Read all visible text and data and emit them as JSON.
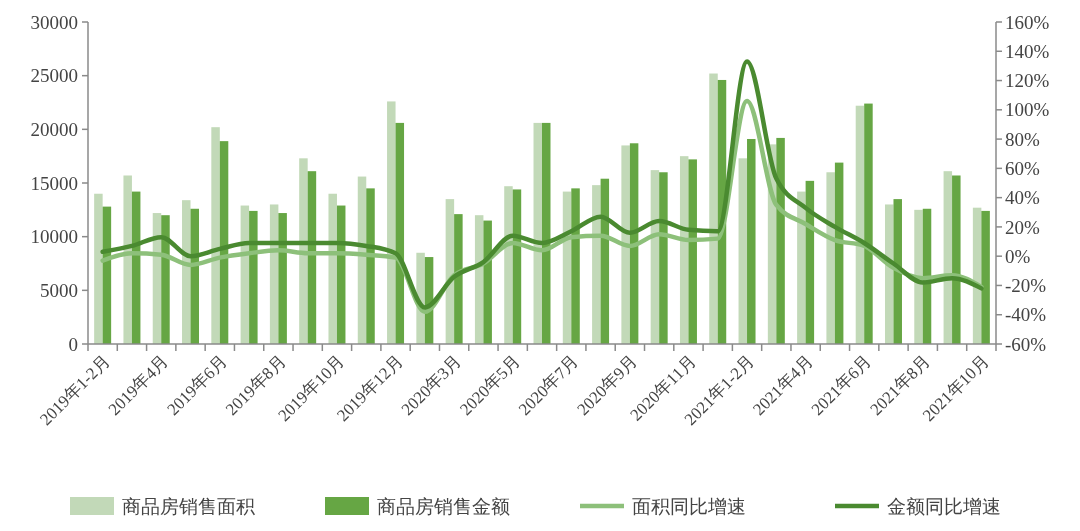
{
  "chart_data": {
    "type": "bar",
    "categories": [
      "2019年1-2月",
      null,
      "2019年4月",
      null,
      "2019年6月",
      null,
      "2019年8月",
      null,
      "2019年10月",
      null,
      "2019年12月",
      null,
      "2020年3月",
      null,
      "2020年5月",
      null,
      "2020年7月",
      null,
      "2020年9月",
      null,
      "2020年11月",
      null,
      "2021年1-2月",
      null,
      "2021年4月",
      null,
      "2021年6月",
      null,
      "2021年8月",
      null,
      "2021年10月"
    ],
    "series": [
      {
        "name": "商品房销售面积",
        "color": "#c2d9b8",
        "values": [
          14000,
          15700,
          12200,
          13400,
          20200,
          12900,
          13000,
          17300,
          14000,
          15600,
          22600,
          8500,
          13500,
          12000,
          14700,
          20600,
          14200,
          14800,
          18500,
          16200,
          17500,
          25200,
          17300,
          18600,
          14200,
          16000,
          22200,
          13000,
          12500,
          16100,
          12700
        ]
      },
      {
        "name": "商品房销售金额",
        "color": "#66a644",
        "values": [
          12800,
          14200,
          12000,
          12600,
          18900,
          12400,
          12200,
          16100,
          12900,
          14500,
          20600,
          8100,
          12100,
          11500,
          14400,
          20600,
          14500,
          15400,
          18700,
          16000,
          17200,
          24600,
          19100,
          19200,
          15200,
          16900,
          22400,
          13500,
          12600,
          15700,
          12400
        ]
      },
      {
        "name": "面积同比增速",
        "type": "line",
        "axis": "y2",
        "color": "#8dc07a",
        "values": [
          -3,
          2,
          1,
          -6,
          -1,
          2,
          4,
          2,
          2,
          1,
          -1,
          -38,
          -13,
          -5,
          9,
          4,
          13,
          14,
          7,
          15,
          11,
          12,
          106,
          35,
          22,
          11,
          7,
          -8,
          -15,
          -13,
          -21
        ]
      },
      {
        "name": "金额同比增速",
        "type": "line",
        "axis": "y2",
        "color": "#4a8a30",
        "values": [
          3,
          7,
          13,
          0,
          5,
          9,
          9,
          9,
          9,
          7,
          2,
          -35,
          -14,
          -4,
          14,
          9,
          17,
          27,
          16,
          24,
          18,
          17,
          133,
          53,
          33,
          20,
          9,
          -5,
          -18,
          -15,
          -22
        ]
      }
    ],
    "ylim": [
      0,
      30000
    ],
    "yticks": [
      0,
      5000,
      10000,
      15000,
      20000,
      25000,
      30000
    ],
    "y2lim": [
      -60,
      160
    ],
    "y2ticks": [
      {
        "value": -60,
        "label": "-60%"
      },
      {
        "value": -40,
        "label": "-40%"
      },
      {
        "value": -20,
        "label": "-20%"
      },
      {
        "value": 0,
        "label": "0%"
      },
      {
        "value": 20,
        "label": "20%"
      },
      {
        "value": 40,
        "label": "40%"
      },
      {
        "value": 60,
        "label": "60%"
      },
      {
        "value": 80,
        "label": "80%"
      },
      {
        "value": 100,
        "label": "100%"
      },
      {
        "value": 120,
        "label": "120%"
      },
      {
        "value": 140,
        "label": "140%"
      },
      {
        "value": 160,
        "label": "160%"
      }
    ],
    "legend": "bottom"
  }
}
